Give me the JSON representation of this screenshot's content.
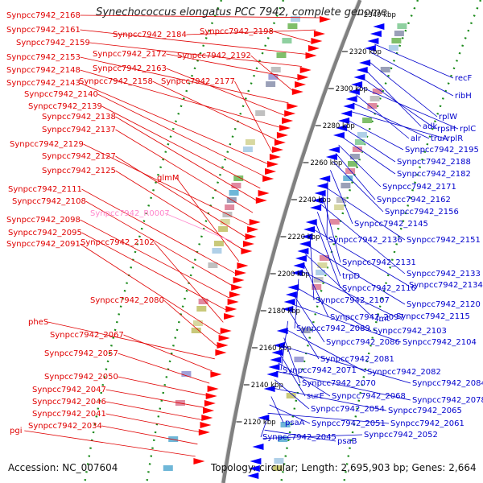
{
  "title": "Synechococcus elongatus PCC 7942, complete genome",
  "accession": "Accession: NC_007604",
  "summary": "Topology: circular; Length: 2,695,903 bp; Genes: 2,664",
  "colors": {
    "forward_label": "#e00000",
    "reverse_label": "#0000cc",
    "rna_label": "#ff88cc",
    "backbone": "#808080",
    "gc_dots": "#1a8a1a"
  },
  "tick_labels": [
    "2340 kbp",
    "2320 kbp",
    "2300 kbp",
    "2280 kbp",
    "2260 kbp",
    "2240 kbp",
    "2220 kbp",
    "2200 kbp",
    "2180 kbp",
    "2160 kbp",
    "2140 kbp",
    "2120 kbp"
  ],
  "red_labels": [
    "Synpcc7942_2168",
    "Synpcc7942_2184",
    "Synpcc7942_2198",
    "Synpcc7942_2161",
    "Synpcc7942_2159",
    "Synpcc7942_2172",
    "Synpcc7942_2192",
    "Synpcc7942_2153",
    "Synpcc7942_2163",
    "Synpcc7942_2148",
    "Synpcc7942_2158",
    "Synpcc7942_2177",
    "Synpcc7942_2143",
    "Synpcc7942_2140",
    "Synpcc7942_2139",
    "Synpcc7942_2138",
    "Synpcc7942_2137",
    "Synpcc7942_2129",
    "Synpcc7942_2127",
    "Synpcc7942_2125",
    "glmM",
    "Synpcc7942_2111",
    "Synpcc7942_2108",
    "Synpcc7942_2098",
    "Synpcc7942_2095",
    "Synpcc7942_2102",
    "Synpcc7942_2091",
    "Synpcc7942_2080",
    "pheS",
    "Synpcc7942_2067",
    "Synpcc7942_2057",
    "Synpcc7942_2050",
    "Synpcc7942_2047",
    "Synpcc7942_2046",
    "Synpcc7942_2041",
    "Synpcc7942_2034",
    "pgi"
  ],
  "rna_labels": [
    "Synpcc7942_R0007"
  ],
  "blue_labels": [
    "recF",
    "ribH",
    "rplW",
    "adk",
    "rpsH",
    "rplC",
    "alr",
    "truA",
    "rplR",
    "Synpcc7942_2195",
    "Synpcc7942_2188",
    "Synpcc7942_2182",
    "Synpcc7942_2171",
    "Synpcc7942_2162",
    "Synpcc7942_2156",
    "Synpcc7942_2145",
    "Synpcc7942_2136",
    "Synpcc7942_2151",
    "Synpcc7942_2131",
    "Synpcc7942_2133",
    "trpD",
    "Synpcc7942_2116",
    "Synpcc7942_2134",
    "Synpcc7942_2107",
    "Synpcc7942_2120",
    "fmt",
    "Synpcc7942_2097",
    "Synpcc7942_2115",
    "Synpcc7942_2089",
    "Synpcc7942_2103",
    "Synpcc7942_2086",
    "Synpcc7942_2104",
    "Synpcc7942_2081",
    "Synpcc7942_2071",
    "Synpcc7942_2082",
    "Synpcc7942_2070",
    "Synpcc7942_2084",
    "surE",
    "Synpcc7942_2068",
    "Synpcc7942_2078",
    "Synpcc7942_2054",
    "Synpcc7942_2065",
    "psaA",
    "Synpcc7942_2051",
    "Synpcc7942_2061",
    "Synpcc7942_2045",
    "psaB",
    "Synpcc7942_2052"
  ]
}
